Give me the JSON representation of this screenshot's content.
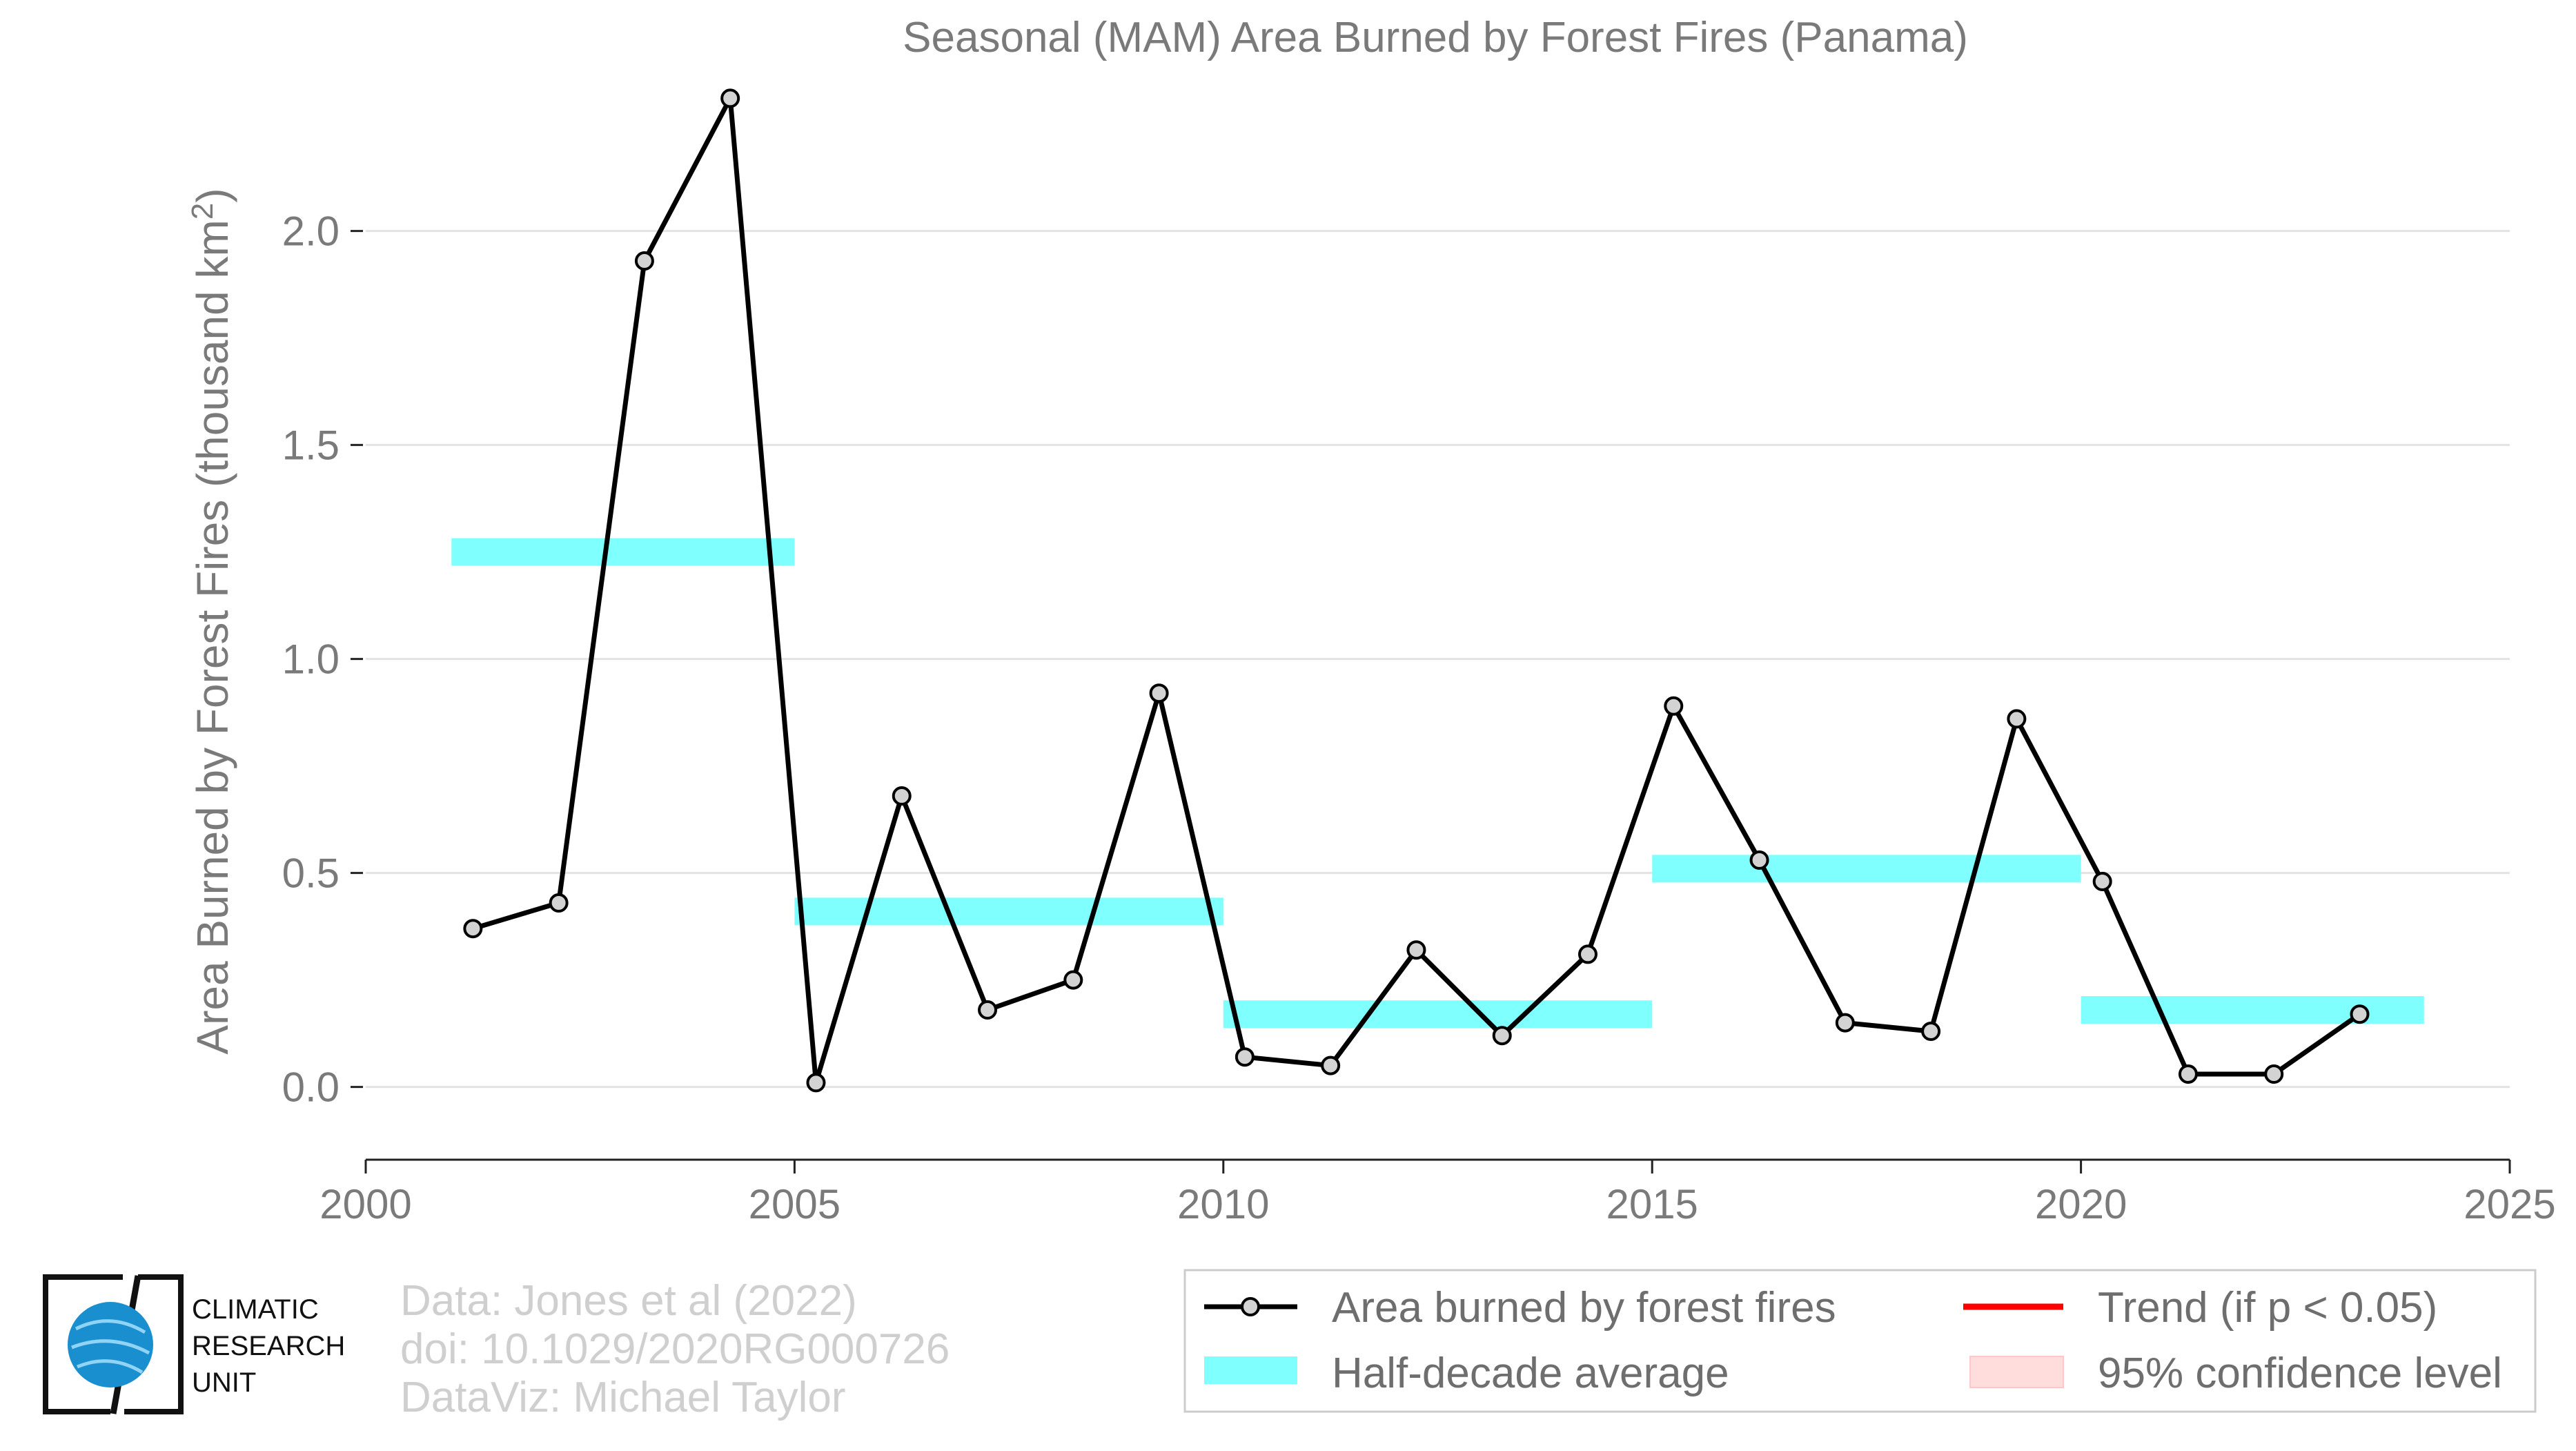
{
  "chart_data": {
    "type": "line",
    "title": "Seasonal (MAM) Area Burned by Forest Fires (Panama)",
    "xlabel": "",
    "ylabel_main": "Area Burned by Forest Fires (thousand km",
    "ylabel_sup": "2",
    "ylabel_close": ")",
    "xlim": [
      2000,
      2025
    ],
    "ylim": [
      -0.17,
      2.33
    ],
    "x_ticks": [
      2000,
      2005,
      2010,
      2015,
      2020,
      2025
    ],
    "x_tick_labels": [
      "2000",
      "2005",
      "2010",
      "2015",
      "2020",
      "2025"
    ],
    "y_ticks": [
      0.0,
      0.5,
      1.0,
      1.5,
      2.0
    ],
    "y_tick_labels": [
      "0.0",
      "0.5",
      "1.0",
      "1.5",
      "2.0"
    ],
    "grid": "horizontal",
    "legend_position": "bottom-right",
    "series": [
      {
        "name": "Area burned by forest fires",
        "color": "#000000",
        "marker_fill": "#d3d3d3",
        "x": [
          2001.25,
          2002.25,
          2003.25,
          2004.25,
          2005.25,
          2006.25,
          2007.25,
          2008.25,
          2009.25,
          2010.25,
          2011.25,
          2012.25,
          2013.25,
          2014.25,
          2015.25,
          2016.25,
          2017.25,
          2018.25,
          2019.25,
          2020.25,
          2021.25,
          2022.25,
          2023.25
        ],
        "y": [
          0.37,
          0.43,
          1.93,
          2.31,
          0.01,
          0.68,
          0.18,
          0.25,
          0.92,
          0.07,
          0.05,
          0.32,
          0.12,
          0.31,
          0.89,
          0.53,
          0.15,
          0.13,
          0.86,
          0.48,
          0.03,
          0.03,
          0.17
        ]
      }
    ],
    "half_decade_average": {
      "name": "Half-decade average",
      "color": "#80ffff",
      "segments": [
        {
          "x0": 2001,
          "x1": 2005,
          "y": 1.25
        },
        {
          "x0": 2005,
          "x1": 2010,
          "y": 0.41
        },
        {
          "x0": 2010,
          "x1": 2015,
          "y": 0.17
        },
        {
          "x0": 2015,
          "x1": 2020,
          "y": 0.51
        },
        {
          "x0": 2020,
          "x1": 2024,
          "y": 0.18
        }
      ]
    },
    "legend": [
      {
        "label": "Area burned by forest fires",
        "kind": "line-marker",
        "color": "#000000"
      },
      {
        "label": "Trend (if p < 0.05)",
        "kind": "line",
        "color": "#ff0000"
      },
      {
        "label": "Half-decade average",
        "kind": "band",
        "color": "#80ffff"
      },
      {
        "label": "95% confidence level",
        "kind": "band",
        "color": "#ffdddd"
      }
    ]
  },
  "credits": {
    "data": "Data: Jones et al (2022)",
    "doi": "doi: 10.1029/2020RG000726",
    "dataviz": "DataViz: Michael Taylor"
  },
  "logo": {
    "line1": "CLIMATIC",
    "line2": "RESEARCH",
    "line3": "UNIT",
    "globe_color": "#1a8fd0"
  }
}
